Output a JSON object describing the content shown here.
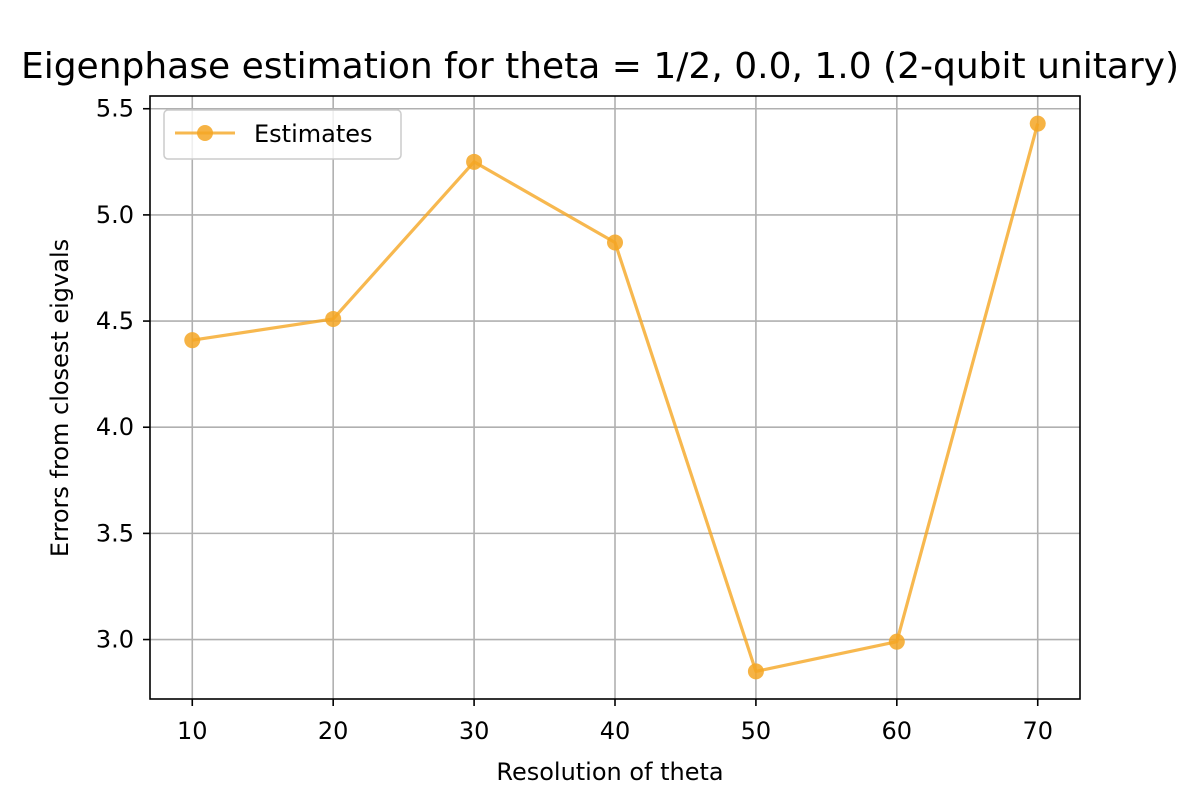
{
  "chart_data": {
    "type": "line",
    "title": "Eigenphase estimation for theta = 1/2, 0.0, 1.0 (2-qubit unitary)",
    "xlabel": "Resolution of theta",
    "ylabel": "Errors from closest eigvals",
    "x": [
      10,
      20,
      30,
      40,
      50,
      60,
      70
    ],
    "xticks": [
      "10",
      "20",
      "30",
      "40",
      "50",
      "60",
      "70"
    ],
    "yticks": [
      "3.0",
      "3.5",
      "4.0",
      "4.5",
      "5.0",
      "5.5"
    ],
    "xlim": [
      7,
      73
    ],
    "ylim": [
      2.72,
      5.56
    ],
    "grid": true,
    "legend_position": "upper-left",
    "series": [
      {
        "name": "Estimates",
        "color": "#f5a623",
        "marker": "circle",
        "values": [
          4.41,
          4.51,
          5.25,
          4.87,
          2.85,
          2.99,
          5.43
        ]
      }
    ]
  }
}
